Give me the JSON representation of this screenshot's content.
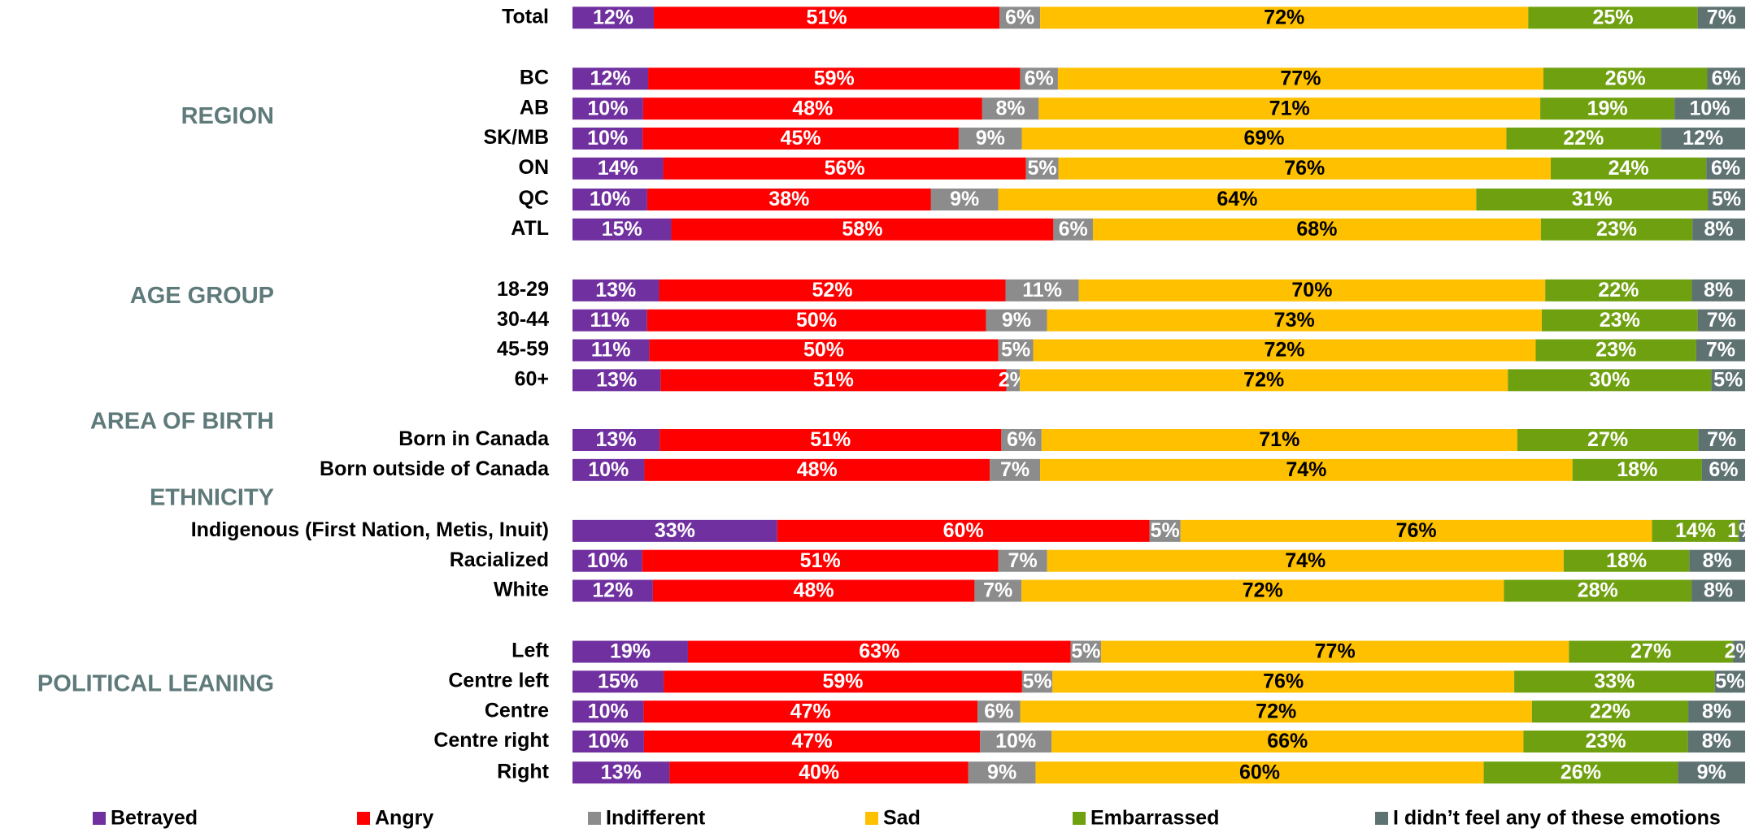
{
  "chart_data": {
    "type": "stacked_bar_horizontal",
    "categories": [
      "Total",
      "BC",
      "AB",
      "SK/MB",
      "ON",
      "QC",
      "ATL",
      "18-29",
      "30-44",
      "45-59",
      "60+",
      "Born in Canada",
      "Born outside of Canada",
      "Indigenous (First Nation, Metis, Inuit)",
      "Racialized",
      "White",
      "Left",
      "Centre left",
      "Centre",
      "Centre right",
      "Right"
    ],
    "groups": [
      "REGION",
      "AGE GROUP",
      "AREA OF BIRTH",
      "ETHNICITY",
      "POLITICAL LEANING"
    ],
    "series": [
      {
        "name": "Betrayed",
        "color": "#7030a0",
        "values": [
          12,
          12,
          10,
          10,
          14,
          10,
          15,
          13,
          11,
          11,
          13,
          13,
          10,
          33,
          10,
          12,
          19,
          15,
          10,
          10,
          13
        ],
        "value_labels": [
          "12%",
          "12%",
          "10%",
          "10%",
          "14%",
          "10%",
          "15%",
          "13%",
          "11%",
          "11%",
          "13%",
          "13%",
          "10%",
          "33%",
          "10%",
          "12%",
          "19%",
          "15%",
          "10%",
          "10%",
          "13%"
        ]
      },
      {
        "name": "Angry",
        "color": "#ff0000",
        "values": [
          51,
          59,
          48,
          45,
          56,
          38,
          58,
          52,
          50,
          50,
          51,
          51,
          48,
          60,
          51,
          48,
          63,
          59,
          47,
          47,
          40
        ],
        "value_labels": [
          "51%",
          "59%",
          "48%",
          "45%",
          "56%",
          "38%",
          "58%",
          "52%",
          "50%",
          "50%",
          "51%",
          "51%",
          "48%",
          "60%",
          "51%",
          "48%",
          "63%",
          "59%",
          "47%",
          "47%",
          "40%"
        ]
      },
      {
        "name": "Indifferent",
        "color": "#8c8c8c",
        "values": [
          6,
          6,
          8,
          9,
          5,
          9,
          6,
          11,
          9,
          5,
          2,
          6,
          7,
          5,
          7,
          7,
          5,
          5,
          6,
          10,
          9
        ],
        "value_labels": [
          "6%",
          "6%",
          "8%",
          "9%",
          "5%",
          "9%",
          "6%",
          "11%",
          "9%",
          "5%",
          "2%",
          "6%",
          "7%",
          "5%",
          "7%",
          "7%",
          "5%",
          "5%",
          "6%",
          "10%",
          "9%"
        ]
      },
      {
        "name": "Sad",
        "color": "#ffc000",
        "values": [
          72,
          77,
          71,
          69,
          76,
          64,
          68,
          70,
          73,
          72,
          72,
          71,
          74,
          76,
          74,
          72,
          77,
          76,
          72,
          66,
          60
        ],
        "value_labels": [
          "72%",
          "77%",
          "71%",
          "69%",
          "76%",
          "64%",
          "68%",
          "70%",
          "73%",
          "72%",
          "72%",
          "71%",
          "74%",
          "76%",
          "74%",
          "72%",
          "77%",
          "76%",
          "72%",
          "66%",
          "60%"
        ]
      },
      {
        "name": "Embarrassed",
        "color": "#6fa00f",
        "values": [
          25,
          26,
          19,
          22,
          24,
          31,
          23,
          22,
          23,
          23,
          30,
          27,
          18,
          14,
          18,
          28,
          27,
          33,
          22,
          23,
          26
        ],
        "value_labels": [
          "25%",
          "26%",
          "19%",
          "22%",
          "24%",
          "31%",
          "23%",
          "22%",
          "23%",
          "23%",
          "30%",
          "27%",
          "18%",
          "14%",
          "18%",
          "28%",
          "27%",
          "33%",
          "22%",
          "23%",
          "26%"
        ]
      },
      {
        "name": "I didn’t feel any of these emotions",
        "color": "#5f7272",
        "values": [
          7,
          6,
          10,
          12,
          6,
          5,
          8,
          8,
          7,
          7,
          5,
          7,
          6,
          1,
          8,
          8,
          2,
          5,
          8,
          8,
          9
        ],
        "value_labels": [
          "7%",
          "6%",
          "10%",
          "12%",
          "6%",
          "5%",
          "8%",
          "8%",
          "7%",
          "7%",
          "5%",
          "7%",
          "6%",
          "1%",
          "8%",
          "8%",
          "2%",
          "5%",
          "8%",
          "8%",
          "9%"
        ]
      }
    ],
    "legend": "bottom"
  }
}
